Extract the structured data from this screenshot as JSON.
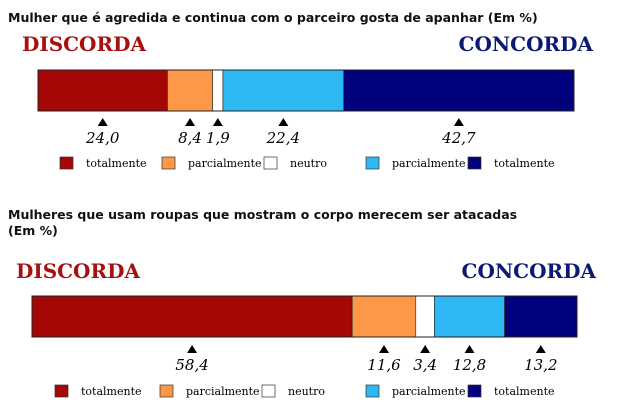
{
  "colors": {
    "discorda_text": "#a80f0f",
    "concorda_text": "#0c1a73",
    "totalmente_discorda": "#a50606",
    "parcialmente_discorda": "#fd9848",
    "neutro": "#ffffff",
    "parcialmente_concorda": "#2eb8f3",
    "totalmente_concorda": "#01017d",
    "bar_border": "#222222"
  },
  "legend": [
    {
      "label": "totalmente",
      "color_key": "totalmente_discorda"
    },
    {
      "label": "parcialmente",
      "color_key": "parcialmente_discorda"
    },
    {
      "label": "neutro",
      "color_key": "neutro"
    },
    {
      "label": "parcialmente",
      "color_key": "parcialmente_concorda"
    },
    {
      "label": "totalmente",
      "color_key": "totalmente_concorda"
    }
  ],
  "chart_data": [
    {
      "type": "bar",
      "orientation": "horizontal-stacked",
      "title": "Mulher que é agredida e continua com o parceiro gosta de apanhar (Em %)",
      "left_label": "DISCORDA",
      "right_label": "CONCORDA",
      "categories": [
        "totalmente",
        "parcialmente",
        "neutro",
        "parcialmente",
        "totalmente"
      ],
      "values": [
        24.0,
        8.4,
        1.9,
        22.4,
        42.7
      ],
      "value_labels": [
        "24,0",
        "8,4",
        "1,9",
        "22,4",
        "42,7"
      ]
    },
    {
      "type": "bar",
      "orientation": "horizontal-stacked",
      "title": "Mulheres que usam roupas que mostram o corpo merecem ser atacadas\n(Em %)",
      "left_label": "DISCORDA",
      "right_label": "CONCORDA",
      "categories": [
        "totalmente",
        "parcialmente",
        "neutro",
        "parcialmente",
        "totalmente"
      ],
      "values": [
        58.4,
        11.6,
        3.4,
        12.8,
        13.2
      ],
      "value_labels": [
        "58,4",
        "11,6",
        "3,4",
        "12,8",
        "13,2"
      ]
    }
  ]
}
